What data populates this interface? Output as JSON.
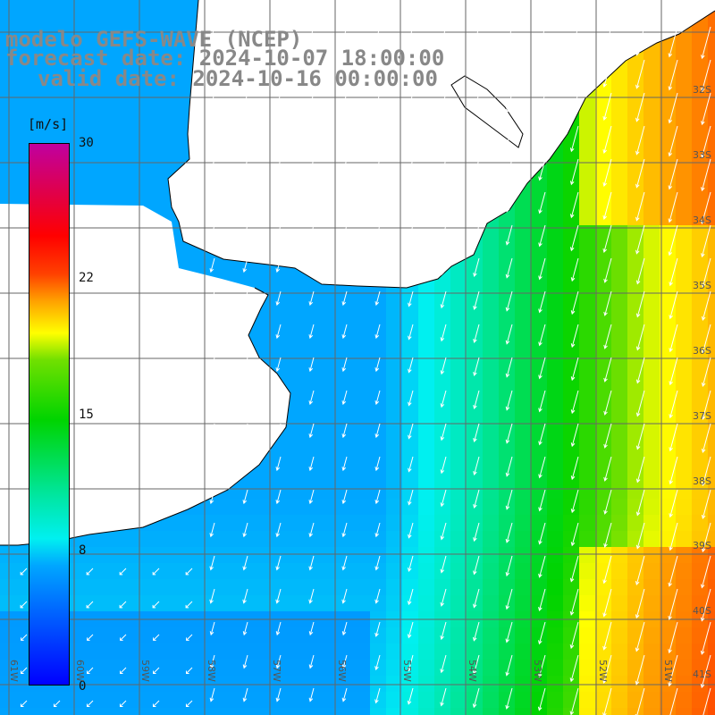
{
  "title": {
    "model": "modelo GEFS-WAVE (NCEP)",
    "forecast": "forecast date: 2024-10-07 18:00:00",
    "valid": "valid date: 2024-10-16 00:00:00"
  },
  "colorbar": {
    "units": "[m/s]",
    "ticks": [
      "30",
      "22",
      "15",
      "8",
      "0"
    ],
    "tick_values": [
      30,
      22,
      15,
      8,
      0
    ],
    "colors": [
      "#0000ff",
      "#0078ff",
      "#00a6ff",
      "#00f0f0",
      "#00e6a0",
      "#00d400",
      "#70e000",
      "#ffff00",
      "#ffa000",
      "#ff4000",
      "#ff0000",
      "#e0004a",
      "#c000a0"
    ]
  },
  "lat_labels": [
    "32S",
    "33S",
    "34S",
    "35S",
    "36S",
    "37S",
    "38S",
    "39S",
    "40S",
    "41S"
  ],
  "lon_labels": [
    "61W",
    "60W",
    "59W",
    "58W",
    "57W",
    "56W",
    "55W",
    "54W",
    "53W",
    "52W",
    "51W"
  ],
  "colors": {
    "grid": "#666666",
    "coast": "#000000",
    "arrows": "#ffffff",
    "title_text": "#888888"
  }
}
